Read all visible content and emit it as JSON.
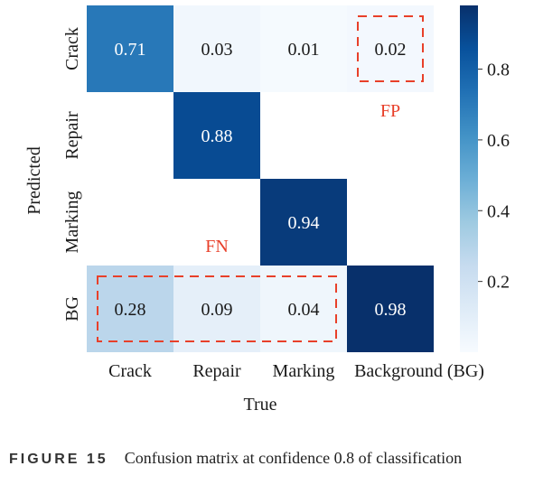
{
  "chart_data": {
    "type": "heatmap",
    "xlabel": "True",
    "ylabel": "Predicted",
    "x_categories": [
      "Crack",
      "Repair",
      "Marking",
      "Background (BG)"
    ],
    "y_categories": [
      "Crack",
      "Repair",
      "Marking",
      "BG"
    ],
    "cells": [
      [
        0.71,
        0.03,
        0.01,
        0.02
      ],
      [
        null,
        0.88,
        null,
        null
      ],
      [
        null,
        null,
        0.94,
        null
      ],
      [
        0.28,
        0.09,
        0.04,
        0.98
      ]
    ],
    "colormap": "Blues",
    "vmin": 0.0,
    "vmax": 0.98,
    "colorbar_ticks": [
      "0.2",
      "0.4",
      "0.6",
      "0.8"
    ],
    "colorbar_tick_values": [
      0.2,
      0.4,
      0.6,
      0.8
    ],
    "annotations": [
      {
        "label": "FP",
        "color": "#e8402a",
        "boxed_row": 0,
        "boxed_cols": [
          3,
          3
        ]
      },
      {
        "label": "FN",
        "color": "#e8402a",
        "boxed_row": 3,
        "boxed_cols": [
          0,
          2
        ]
      }
    ]
  },
  "caption": {
    "figure_label": "FIGURE 15",
    "text": "Confusion matrix at confidence 0.8 of classification"
  }
}
